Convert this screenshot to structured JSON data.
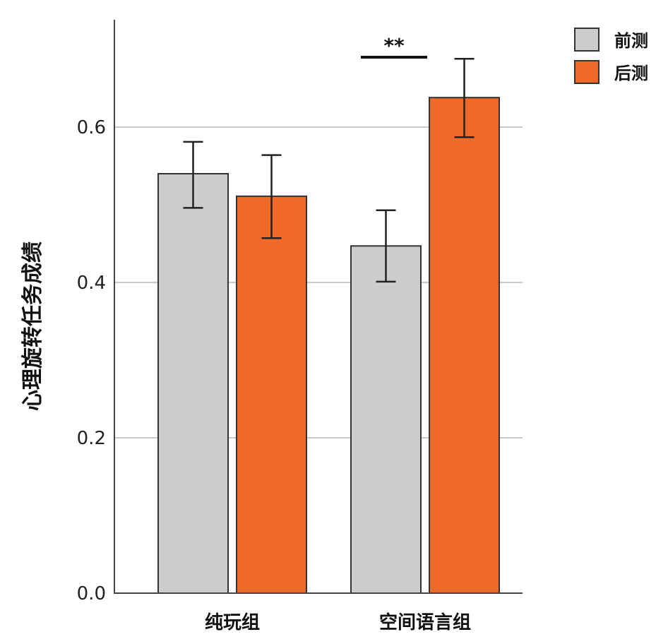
{
  "chart_data": {
    "type": "bar",
    "ylabel": "心理旋转任务成绩",
    "ylim": [
      0,
      0.74
    ],
    "yticks": [
      0.0,
      0.2,
      0.4,
      0.6
    ],
    "ytick_labels": [
      "0.0",
      "0.2",
      "0.4",
      "0.6"
    ],
    "grid": true,
    "categories": [
      "纯玩组",
      "空间语言组"
    ],
    "legend_position": "top-right",
    "series": [
      {
        "name": "前测",
        "color": "#cccccc",
        "values": [
          0.54,
          0.447
        ],
        "error_low": [
          0.496,
          0.401
        ],
        "error_high": [
          0.581,
          0.493
        ]
      },
      {
        "name": "后测",
        "color": "#ef6a2a",
        "values": [
          0.511,
          0.638
        ],
        "error_low": [
          0.457,
          0.587
        ],
        "error_high": [
          0.564,
          0.688
        ]
      }
    ],
    "annotations": [
      {
        "text": "**",
        "category_index": 1
      }
    ]
  }
}
